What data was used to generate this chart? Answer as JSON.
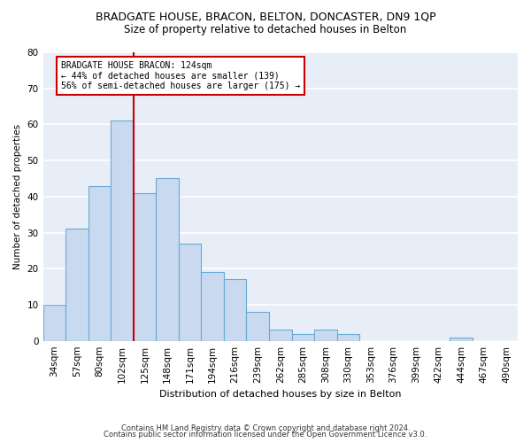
{
  "title_line1": "BRADGATE HOUSE, BRACON, BELTON, DONCASTER, DN9 1QP",
  "title_line2": "Size of property relative to detached houses in Belton",
  "xlabel": "Distribution of detached houses by size in Belton",
  "ylabel": "Number of detached properties",
  "bin_labels": [
    "34sqm",
    "57sqm",
    "80sqm",
    "102sqm",
    "125sqm",
    "148sqm",
    "171sqm",
    "194sqm",
    "216sqm",
    "239sqm",
    "262sqm",
    "285sqm",
    "308sqm",
    "330sqm",
    "353sqm",
    "376sqm",
    "399sqm",
    "422sqm",
    "444sqm",
    "467sqm",
    "490sqm"
  ],
  "bar_values": [
    10,
    31,
    43,
    61,
    41,
    45,
    27,
    19,
    17,
    8,
    3,
    2,
    3,
    2,
    0,
    0,
    0,
    0,
    1,
    0,
    0
  ],
  "bar_color": "#c8d9f0",
  "bar_edge_color": "#6aaad4",
  "vline_x_index": 4,
  "vline_color": "#cc0000",
  "annotation_title": "BRADGATE HOUSE BRACON: 124sqm",
  "annotation_line2": "← 44% of detached houses are smaller (139)",
  "annotation_line3": "56% of semi-detached houses are larger (175) →",
  "annotation_box_color": "#ffffff",
  "annotation_border_color": "#cc0000",
  "ylim": [
    0,
    80
  ],
  "yticks": [
    0,
    10,
    20,
    30,
    40,
    50,
    60,
    70,
    80
  ],
  "fig_background": "#ffffff",
  "axes_background": "#e8eef8",
  "footer_line1": "Contains HM Land Registry data © Crown copyright and database right 2024.",
  "footer_line2": "Contains public sector information licensed under the Open Government Licence v3.0.",
  "grid_color": "#ffffff",
  "title_fontsize": 9,
  "subtitle_fontsize": 8.5,
  "bar_width": 1.0
}
